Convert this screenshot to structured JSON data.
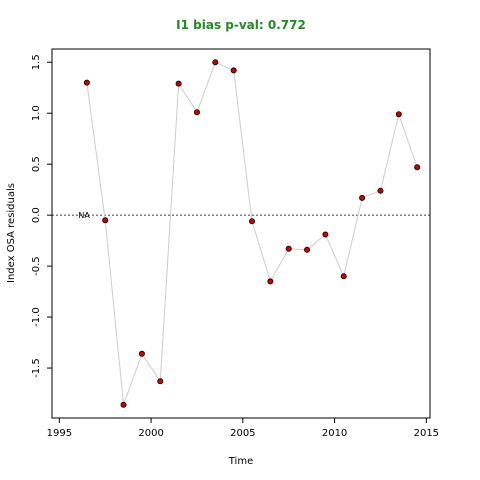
{
  "chart_data": {
    "type": "scatter",
    "title": "I1 bias p-val: 0.772",
    "title_color": "#228B22",
    "xlabel": "Time",
    "ylabel": "Index OSA residuals",
    "xlim": [
      1994.6,
      2015.2
    ],
    "ylim": [
      -1.99,
      1.63
    ],
    "x_ticks": [
      1995,
      2000,
      2005,
      2010,
      2015
    ],
    "y_ticks": [
      -1.5,
      -1.0,
      -0.5,
      0.0,
      0.5,
      1.0,
      1.5
    ],
    "x": [
      1996.5,
      1997.5,
      1998.5,
      1999.5,
      2000.5,
      2001.5,
      2002.5,
      2003.5,
      2004.5,
      2005.5,
      2006.5,
      2007.5,
      2008.5,
      2009.5,
      2010.5,
      2011.5,
      2012.5,
      2013.5,
      2014.5
    ],
    "y": [
      1.3,
      -0.05,
      -1.86,
      -1.36,
      -1.63,
      1.29,
      1.01,
      1.5,
      1.42,
      -0.06,
      -0.65,
      -0.33,
      -0.34,
      -0.19,
      -0.6,
      0.17,
      0.24,
      0.99,
      0.47
    ],
    "point_color": "#cc0000",
    "line_color": "#cccccc",
    "reference_line": {
      "y": 0,
      "style": "dotted"
    },
    "annotation": {
      "text": "NA",
      "x": 1995.6,
      "y": 0
    },
    "grid": false,
    "legend": "none"
  }
}
